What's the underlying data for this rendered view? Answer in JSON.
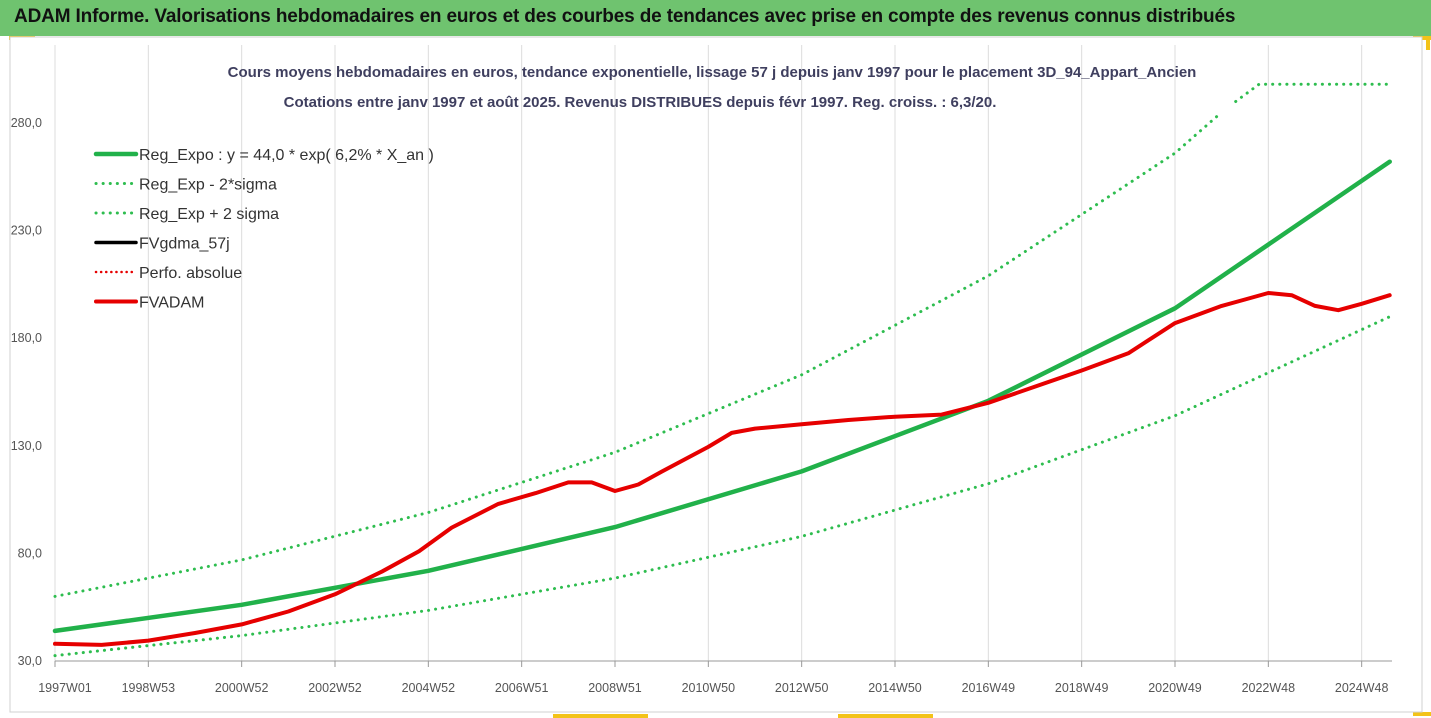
{
  "header": {
    "title": "ADAM Informe. Valorisations hebdomadaires en euros et des courbes de tendances avec prise en compte des revenus connus distribués"
  },
  "colors": {
    "header_bg": "#6fc36f",
    "green": "#21b14a",
    "dotted_green": "#2ebd4f",
    "red": "#e60000",
    "black": "#000000",
    "accent": "#f3c319"
  },
  "chart_data": {
    "type": "line",
    "title": "Cours moyens hebdomadaires en euros, tendance exponentielle, lissage 57 j depuis janv 1997 pour le placement 3D_94_Appart_Ancien",
    "subtitle": "Cotations entre janv 1997 et août 2025. Revenus DISTRIBUES depuis févr 1997. Reg. croiss. : 6,3/20.",
    "ylim": [
      30,
      280
    ],
    "yticks": [
      "30,0",
      "80,0",
      "130,0",
      "180,0",
      "230,0",
      "280,0"
    ],
    "ytick_values": [
      30,
      80,
      130,
      180,
      230,
      280
    ],
    "xlim": [
      1997.0,
      2025.65
    ],
    "xtick_labels": [
      "1997W01",
      "1998W53",
      "2000W52",
      "2002W52",
      "2004W52",
      "2006W51",
      "2008W51",
      "2010W50",
      "2012W50",
      "2014W50",
      "2016W49",
      "2018W49",
      "2020W49",
      "2022W48",
      "2024W48"
    ],
    "xtick_positions": [
      1997.0,
      1999.0,
      2001.0,
      2003.0,
      2005.0,
      2007.0,
      2009.0,
      2011.0,
      2013.0,
      2015.0,
      2017.0,
      2019.0,
      2021.0,
      2023.0,
      2025.0
    ],
    "grid": "vertical",
    "legend_position": "top-left",
    "legend": [
      "Reg_Expo : y = 44,0 * exp( 6,2% *  X_an )",
      "Reg_Exp - 2*sigma",
      "Reg_Exp + 2 sigma",
      "FVgdma_57j",
      "Perfo. absolue",
      "FVADAM"
    ],
    "series": [
      {
        "name": "Reg_Expo : y = 44,0 * exp( 6,2% *  X_an )",
        "style": "solid",
        "color": "#21b14a",
        "x": [
          1997.0,
          2001.0,
          2005.0,
          2009.0,
          2013.0,
          2017.0,
          2021.0,
          2025.6
        ],
        "y": [
          44.0,
          56.1,
          71.9,
          92.2,
          118.1,
          150.9,
          193.9,
          262.0
        ]
      },
      {
        "name": "Reg_Exp - 2*sigma",
        "style": "dotted",
        "color": "#2ebd4f",
        "x": [
          1997.0,
          2001.0,
          2005.0,
          2009.0,
          2013.0,
          2017.0,
          2021.0,
          2025.6
        ],
        "y": [
          32.5,
          41.8,
          53.5,
          68.5,
          87.9,
          112.4,
          144.0,
          190.0
        ]
      },
      {
        "name": "Reg_Exp + 2 sigma",
        "style": "dotted",
        "color": "#2ebd4f",
        "x": [
          1997.0,
          2001.0,
          2005.0,
          2009.0,
          2013.0,
          2017.0,
          2021.0,
          2022.0
        ],
        "y": [
          60.0,
          77.0,
          99.0,
          127.0,
          163.0,
          209.0,
          266.0,
          285.0
        ]
      },
      {
        "name": "Reg_Exp + 2 sigma",
        "style": "dotted",
        "color": "#2ebd4f",
        "x": [
          2022.3,
          2022.8,
          2025.6
        ],
        "y": [
          290.0,
          298.0,
          298.0
        ]
      },
      {
        "name": "FVgdma_57j",
        "style": "solid",
        "color": "#000000",
        "x": [],
        "y": []
      },
      {
        "name": "Perfo. absolue",
        "style": "dotted",
        "color": "#e60000",
        "x": [],
        "y": []
      },
      {
        "name": "FVADAM",
        "style": "solid",
        "color": "#e60000",
        "x": [
          1997.0,
          1998.0,
          1999.0,
          2000.0,
          2001.0,
          2002.0,
          2003.0,
          2004.0,
          2004.8,
          2005.5,
          2006.5,
          2007.3,
          2008.0,
          2008.5,
          2009.0,
          2009.5,
          2010.0,
          2011.0,
          2011.5,
          2012.0,
          2013.0,
          2014.0,
          2015.0,
          2016.0,
          2017.0,
          2018.0,
          2019.0,
          2020.0,
          2021.0,
          2022.0,
          2022.5,
          2023.0,
          2023.5,
          2024.0,
          2024.5,
          2025.0,
          2025.6
        ],
        "y": [
          38.0,
          37.5,
          39.5,
          43.0,
          47.0,
          53.0,
          61.0,
          71.5,
          81.0,
          92.0,
          103.0,
          108.0,
          113.0,
          113.0,
          109.0,
          112.0,
          118.0,
          129.5,
          136.0,
          138.0,
          140.0,
          142.0,
          143.5,
          144.5,
          150.0,
          157.5,
          165.0,
          173.0,
          187.0,
          195.0,
          198.0,
          201.0,
          200.0,
          195.0,
          193.0,
          196.0,
          200.0
        ]
      }
    ]
  }
}
